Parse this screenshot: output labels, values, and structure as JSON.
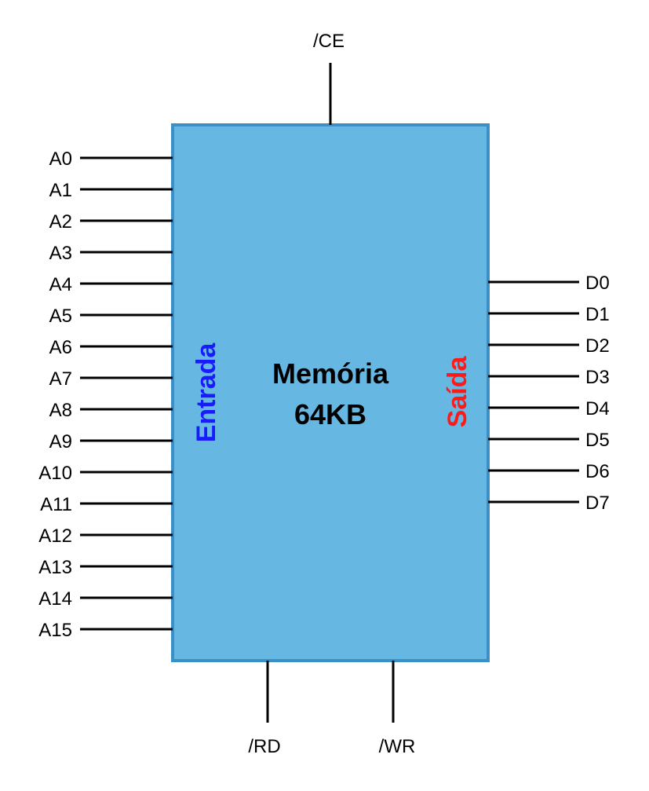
{
  "chip": {
    "title_line1": "Memória",
    "title_line2": "64KB",
    "fill_color": "#66b8e3",
    "border_color": "#3a8fc4"
  },
  "labels": {
    "entrada": "Entrada",
    "entrada_color": "#1a1aff",
    "saida": "Saída",
    "saida_color": "#ff1a1a"
  },
  "control_pins": {
    "ce": "/CE",
    "rd": "/RD",
    "wr": "/WR"
  },
  "address_pins": [
    "A0",
    "A1",
    "A2",
    "A3",
    "A4",
    "A5",
    "A6",
    "A7",
    "A8",
    "A9",
    "A10",
    "A11",
    "A12",
    "A13",
    "A14",
    "A15"
  ],
  "data_pins": [
    "D0",
    "D1",
    "D2",
    "D3",
    "D4",
    "D5",
    "D6",
    "D7"
  ]
}
